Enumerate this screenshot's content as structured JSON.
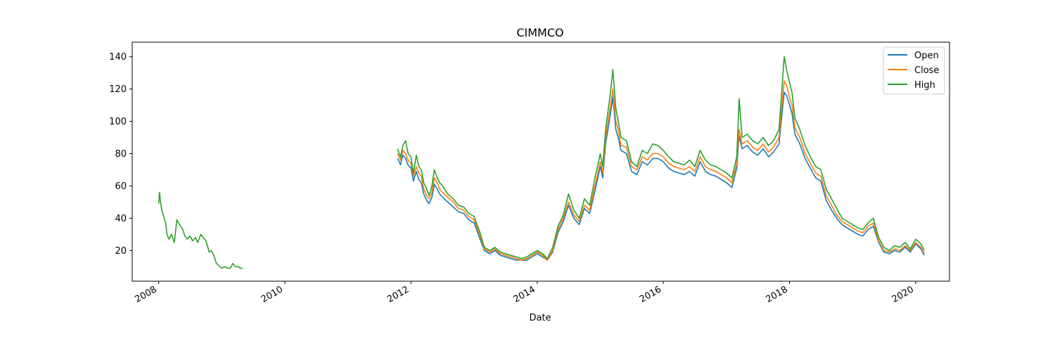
{
  "chart_data": {
    "type": "line",
    "title": "CIMMCO",
    "xlabel": "Date",
    "ylabel": "",
    "x_ticks": [
      "2008",
      "2010",
      "2012",
      "2014",
      "2016",
      "2018",
      "2020"
    ],
    "y_ticks": [
      20,
      40,
      60,
      80,
      100,
      120,
      140
    ],
    "xlim": [
      "2007-08-01",
      "2020-07-15"
    ],
    "ylim": [
      1,
      149
    ],
    "grid": false,
    "legend_position": "top-right",
    "colors": {
      "Open": "#1f77b4",
      "Close": "#ff7f0e",
      "High": "#2ca02c"
    },
    "segments": [
      {
        "dates": [
          "2008-01-01",
          "2008-01-06",
          "2008-01-12",
          "2008-01-18",
          "2008-01-25",
          "2008-02-02",
          "2008-02-10",
          "2008-02-18",
          "2008-03-01",
          "2008-03-15",
          "2008-04-01",
          "2008-04-15",
          "2008-05-01",
          "2008-05-20",
          "2008-06-01",
          "2008-06-15",
          "2008-07-01",
          "2008-07-15",
          "2008-08-01",
          "2008-08-15",
          "2008-09-01",
          "2008-09-15",
          "2008-10-01",
          "2008-10-20",
          "2008-11-01",
          "2008-11-15",
          "2008-12-01",
          "2008-12-20",
          "2009-01-01",
          "2009-01-20",
          "2009-02-01",
          "2009-02-20",
          "2009-03-05",
          "2009-03-20",
          "2009-04-05",
          "2009-04-20",
          "2009-05-01"
        ],
        "high": [
          49,
          56,
          50,
          46,
          43,
          40,
          37,
          30,
          27,
          30,
          25,
          39,
          36,
          33,
          29,
          27,
          29,
          26,
          28,
          25,
          30,
          28,
          26,
          19,
          20,
          17,
          12,
          10,
          9,
          10,
          9,
          9,
          12,
          10,
          10,
          9,
          9
        ]
      },
      {
        "dates": [
          "2011-10-15",
          "2011-10-25",
          "2011-11-01",
          "2011-11-15",
          "2011-12-01",
          "2011-12-15",
          "2012-01-01",
          "2012-01-15",
          "2012-02-01",
          "2012-02-15",
          "2012-03-01",
          "2012-03-15",
          "2012-04-01",
          "2012-04-15",
          "2012-05-01",
          "2012-05-15",
          "2012-06-01",
          "2012-06-15",
          "2012-07-01",
          "2012-08-01",
          "2012-09-01",
          "2012-10-01",
          "2012-11-01",
          "2012-12-01",
          "2013-01-01",
          "2013-02-01",
          "2013-03-01",
          "2013-04-01",
          "2013-05-01",
          "2013-06-01",
          "2013-07-01",
          "2013-08-01",
          "2013-09-01",
          "2013-10-01",
          "2013-11-01",
          "2013-12-01",
          "2014-01-01",
          "2014-02-01",
          "2014-03-01",
          "2014-04-01",
          "2014-05-01",
          "2014-06-01",
          "2014-07-01",
          "2014-08-01",
          "2014-09-01",
          "2014-10-01",
          "2014-11-01",
          "2014-12-01",
          "2015-01-01",
          "2015-01-15",
          "2015-02-01",
          "2015-03-01",
          "2015-03-15",
          "2015-04-01",
          "2015-04-15",
          "2015-05-01",
          "2015-06-01",
          "2015-07-01",
          "2015-08-01",
          "2015-09-01",
          "2015-10-01",
          "2015-11-01",
          "2015-12-01",
          "2016-01-01",
          "2016-02-01",
          "2016-03-01",
          "2016-04-01",
          "2016-05-01",
          "2016-06-01",
          "2016-07-01",
          "2016-08-01",
          "2016-09-01",
          "2016-10-01",
          "2016-11-01",
          "2016-12-01",
          "2017-01-01",
          "2017-02-01",
          "2017-03-01",
          "2017-03-15",
          "2017-04-01",
          "2017-05-01",
          "2017-06-01",
          "2017-07-01",
          "2017-08-01",
          "2017-09-01",
          "2017-10-01",
          "2017-11-01",
          "2017-12-01",
          "2017-12-15",
          "2018-01-01",
          "2018-01-15",
          "2018-02-01",
          "2018-03-01",
          "2018-04-01",
          "2018-05-01",
          "2018-06-01",
          "2018-07-01",
          "2018-08-01",
          "2018-09-01",
          "2018-10-01",
          "2018-11-01",
          "2018-12-01",
          "2019-01-01",
          "2019-02-01",
          "2019-03-01",
          "2019-04-01",
          "2019-05-01",
          "2019-06-01",
          "2019-07-01",
          "2019-08-01",
          "2019-09-01",
          "2019-10-01",
          "2019-11-01",
          "2019-12-01",
          "2020-01-01",
          "2020-02-01",
          "2020-02-20"
        ],
        "high": [
          83,
          80,
          78,
          85,
          88,
          80,
          78,
          68,
          79,
          72,
          70,
          62,
          58,
          54,
          60,
          70,
          65,
          62,
          60,
          55,
          52,
          48,
          47,
          43,
          41,
          32,
          22,
          20,
          22,
          19,
          18,
          17,
          16,
          15,
          16,
          18,
          20,
          18,
          15,
          22,
          35,
          42,
          55,
          45,
          40,
          52,
          48,
          65,
          80,
          72,
          95,
          118,
          132,
          108,
          100,
          90,
          88,
          75,
          72,
          82,
          80,
          86,
          85,
          82,
          78,
          75,
          74,
          73,
          76,
          72,
          82,
          76,
          73,
          72,
          70,
          68,
          65,
          78,
          114,
          90,
          92,
          88,
          86,
          90,
          85,
          88,
          95,
          140,
          132,
          124,
          118,
          102,
          95,
          85,
          78,
          72,
          70,
          58,
          52,
          46,
          40,
          38,
          36,
          34,
          33,
          37,
          40,
          28,
          22,
          20,
          23,
          22,
          25,
          21,
          27,
          24,
          20
        ],
        "close": [
          80,
          78,
          76,
          82,
          80,
          76,
          74,
          66,
          72,
          68,
          66,
          58,
          54,
          52,
          56,
          65,
          62,
          58,
          56,
          53,
          50,
          46,
          45,
          41,
          39,
          30,
          21,
          19,
          21,
          18,
          17,
          16,
          15,
          14,
          15,
          17,
          19,
          17,
          14,
          20,
          33,
          40,
          50,
          42,
          38,
          48,
          45,
          60,
          75,
          68,
          90,
          110,
          120,
          100,
          95,
          85,
          84,
          72,
          70,
          78,
          76,
          80,
          80,
          78,
          74,
          72,
          71,
          70,
          72,
          69,
          78,
          72,
          70,
          69,
          67,
          65,
          62,
          74,
          95,
          86,
          88,
          84,
          82,
          86,
          81,
          84,
          90,
          125,
          122,
          115,
          110,
          96,
          90,
          80,
          74,
          68,
          66,
          54,
          48,
          42,
          38,
          36,
          34,
          32,
          31,
          35,
          37,
          26,
          20,
          19,
          21,
          20,
          23,
          20,
          25,
          22,
          18
        ],
        "open": [
          77,
          75,
          73,
          79,
          77,
          73,
          71,
          63,
          69,
          64,
          62,
          55,
          51,
          49,
          53,
          61,
          58,
          55,
          53,
          50,
          47,
          44,
          43,
          39,
          37,
          28,
          20,
          18,
          20,
          17,
          16,
          15,
          14,
          14,
          14,
          16,
          18,
          16,
          14,
          19,
          31,
          38,
          48,
          40,
          36,
          46,
          43,
          57,
          72,
          65,
          86,
          105,
          115,
          95,
          90,
          82,
          80,
          69,
          67,
          75,
          73,
          77,
          77,
          75,
          71,
          69,
          68,
          67,
          69,
          66,
          75,
          69,
          67,
          66,
          64,
          62,
          59,
          71,
          91,
          83,
          85,
          81,
          79,
          83,
          78,
          81,
          86,
          118,
          116,
          110,
          105,
          92,
          86,
          77,
          71,
          65,
          63,
          51,
          45,
          40,
          36,
          34,
          32,
          30,
          29,
          33,
          35,
          25,
          19,
          18,
          20,
          19,
          22,
          19,
          24,
          21,
          17
        ]
      }
    ]
  },
  "legend": {
    "entries": [
      {
        "name": "Open",
        "color": "#1f77b4"
      },
      {
        "name": "Close",
        "color": "#ff7f0e"
      },
      {
        "name": "High",
        "color": "#2ca02c"
      }
    ]
  }
}
